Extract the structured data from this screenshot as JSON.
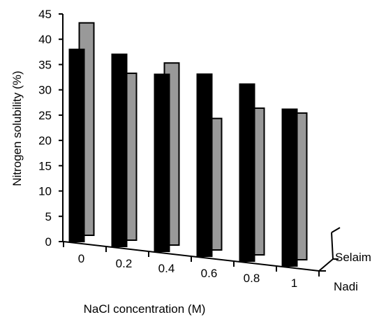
{
  "chart_data": {
    "type": "bar",
    "title": "",
    "xlabel": "NaCl concentration (M)",
    "ylabel": "Nitrogen solubility (%)",
    "ylim": [
      0,
      45
    ],
    "yticks": [
      "0",
      "5",
      "10",
      "15",
      "20",
      "25",
      "30",
      "35",
      "40",
      "45"
    ],
    "categories": [
      "0",
      "0.2",
      "0.4",
      "0.6",
      "0.8",
      "1"
    ],
    "series": [
      {
        "name": "Nadi",
        "color": "#000000",
        "values": [
          38,
          38,
          35,
          36,
          35,
          31
        ]
      },
      {
        "name": "Selaim",
        "color": "#999999",
        "values": [
          42,
          33,
          36,
          26,
          29,
          29
        ]
      }
    ],
    "grid": false,
    "legend": "right-depth-axis"
  }
}
